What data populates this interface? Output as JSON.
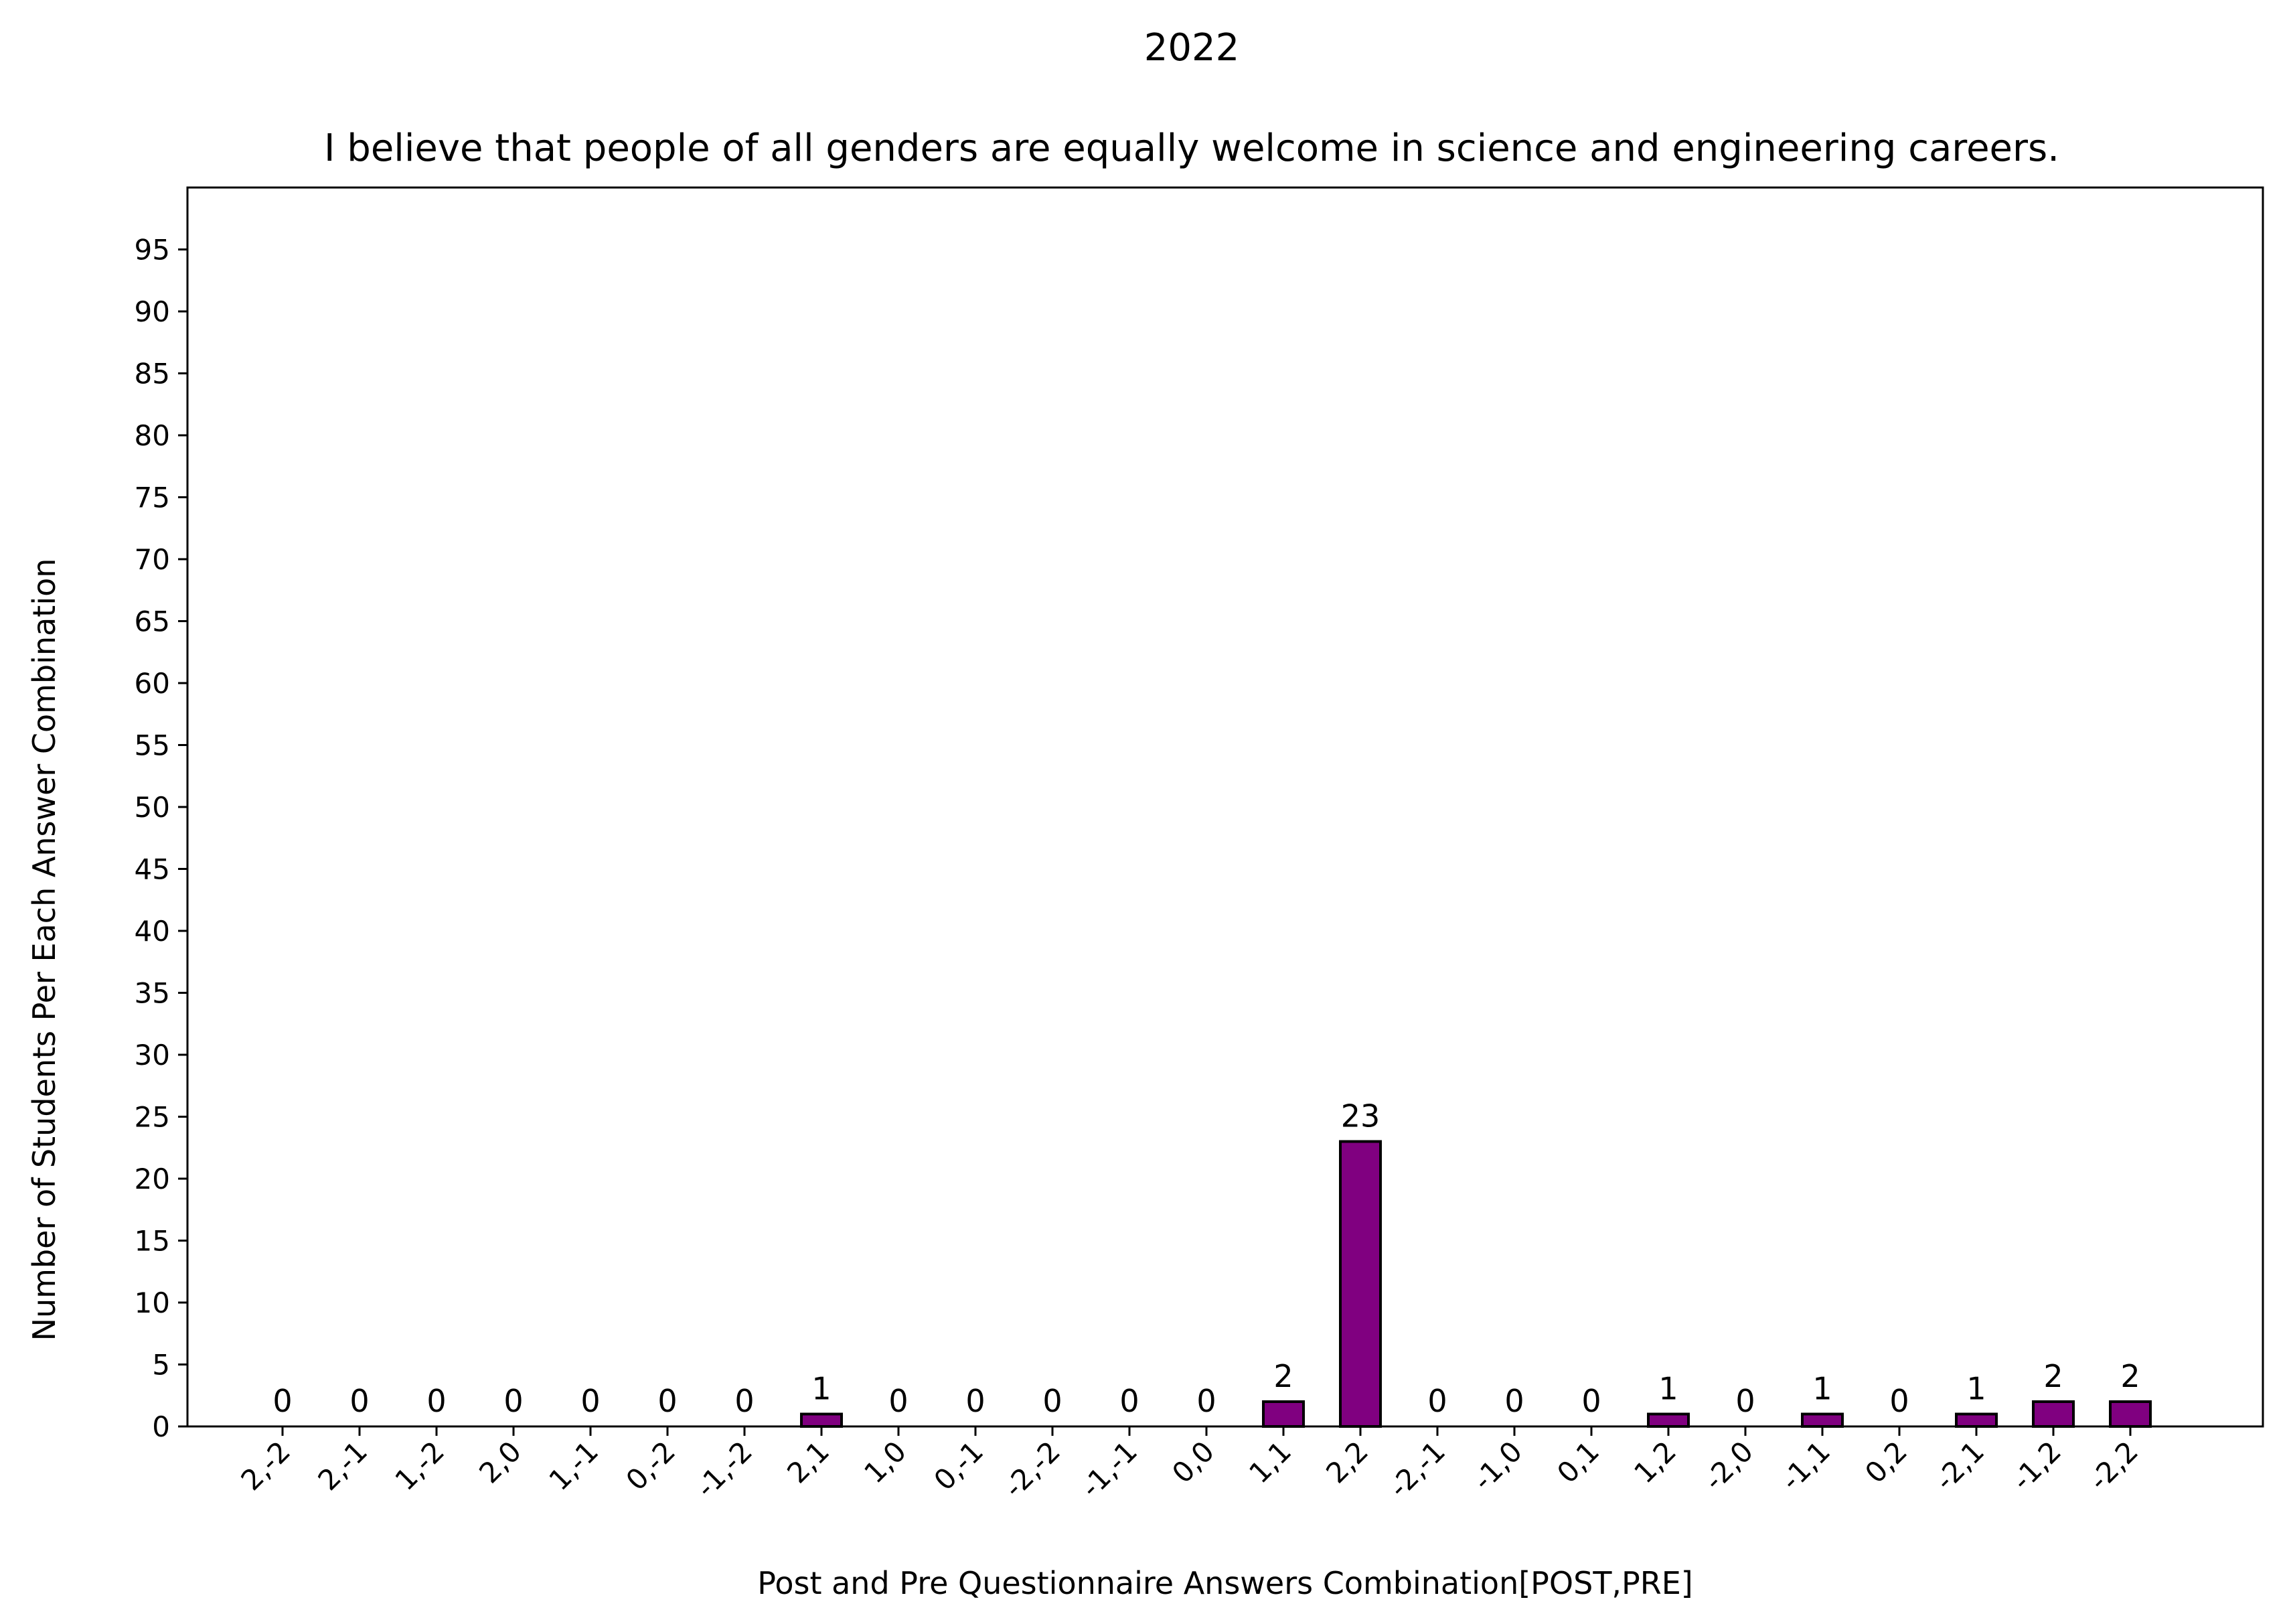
{
  "chart_data": {
    "type": "bar",
    "suptitle": "2022",
    "title": "I believe that people of all genders are equally welcome in science and engineering careers.",
    "xlabel": "Post and Pre Questionnaire Answers Combination[POST,PRE]",
    "ylabel": "Number of Students Per Each Answer Combination",
    "categories": [
      "2,-2",
      "2,-1",
      "1,-2",
      "2,0",
      "1,-1",
      "0,-2",
      "-1,-2",
      "2,1",
      "1,0",
      "0,-1",
      "-2,-2",
      "-1,-1",
      "0,0",
      "1,1",
      "2,2",
      "-2,-1",
      "-1,0",
      "0,1",
      "1,2",
      "-2,0",
      "-1,1",
      "0,2",
      "-2,1",
      "-1,2",
      "-2,2"
    ],
    "values": [
      0,
      0,
      0,
      0,
      0,
      0,
      0,
      1,
      0,
      0,
      0,
      0,
      0,
      2,
      23,
      0,
      0,
      0,
      1,
      0,
      1,
      0,
      1,
      2,
      2
    ],
    "data_labels": [
      "0",
      "0",
      "0",
      "0",
      "0",
      "0",
      "0",
      "1",
      "0",
      "0",
      "0",
      "0",
      "0",
      "2",
      "23",
      "0",
      "0",
      "0",
      "1",
      "0",
      "1",
      "0",
      "1",
      "2",
      "2"
    ],
    "yticks": [
      0,
      5,
      10,
      15,
      20,
      25,
      30,
      35,
      40,
      45,
      50,
      55,
      60,
      65,
      70,
      75,
      80,
      85,
      90,
      95
    ],
    "ylim": [
      0,
      100
    ],
    "bar_color": "#800080",
    "edge_color": "#000000",
    "grid": false,
    "legend": "none"
  }
}
